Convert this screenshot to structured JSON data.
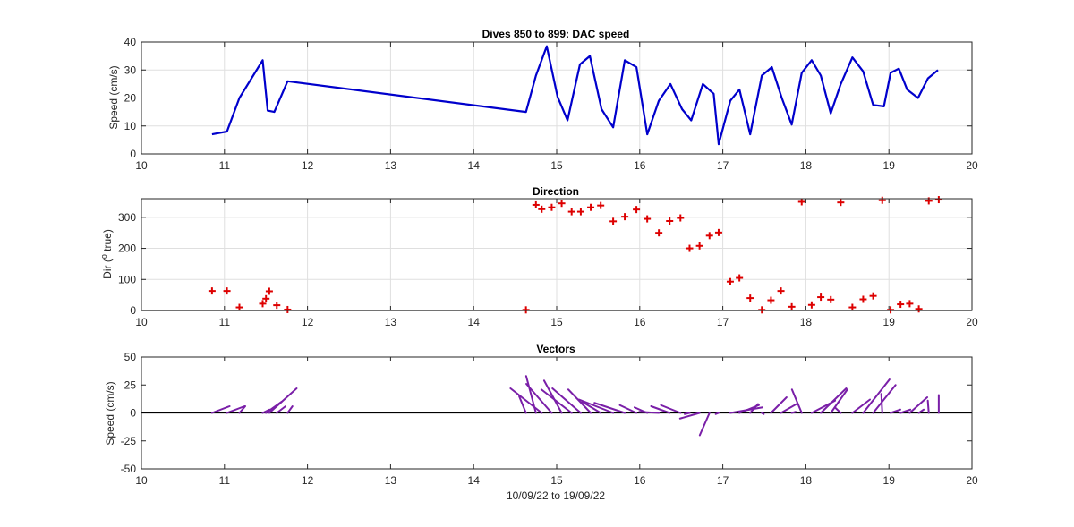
{
  "chart_data": [
    {
      "type": "line",
      "title": "Dives 850 to 899: DAC speed",
      "ylabel": "Speed (cm/s)",
      "xlabel": "",
      "xlim": [
        10,
        20
      ],
      "ylim": [
        0,
        40
      ],
      "xticks": [
        "10",
        "11",
        "12",
        "13",
        "14",
        "15",
        "16",
        "17",
        "18",
        "19",
        "20"
      ],
      "yticks": [
        "0",
        "10",
        "20",
        "30",
        "40"
      ],
      "grid": true,
      "color": "#0000cc",
      "x": [
        10.85,
        11.03,
        11.18,
        11.46,
        11.52,
        11.6,
        11.76,
        14.63,
        14.75,
        14.88,
        15.01,
        15.13,
        15.28,
        15.4,
        15.54,
        15.68,
        15.82,
        15.96,
        16.09,
        16.23,
        16.37,
        16.51,
        16.62,
        16.76,
        16.89,
        16.95,
        17.09,
        17.2,
        17.33,
        17.47,
        17.59,
        17.71,
        17.83,
        17.95,
        18.07,
        18.18,
        18.3,
        18.42,
        18.56,
        18.69,
        18.81,
        18.94,
        19.02,
        19.12,
        19.22,
        19.35,
        19.47,
        19.59
      ],
      "y": [
        7,
        8,
        20,
        33.5,
        15.5,
        15,
        26,
        15,
        28,
        38.5,
        20.5,
        12,
        32,
        35,
        16,
        9.5,
        33.5,
        31,
        7,
        19,
        25,
        16,
        12,
        25,
        21.5,
        3.5,
        19,
        23,
        7,
        28,
        31,
        20,
        10.5,
        29,
        33.5,
        28,
        14.5,
        25,
        34.5,
        29.5,
        17.5,
        17,
        29,
        30.5,
        23,
        20,
        27,
        30
      ]
    },
    {
      "type": "scatter",
      "title": "Direction",
      "ylabel": "Dir (° true)",
      "ylabel_base": "Dir (",
      "ylabel_sup": "o",
      "ylabel_tail": " true)",
      "xlabel": "",
      "xlim": [
        10,
        20
      ],
      "ylim": [
        0,
        360
      ],
      "xticks": [
        "10",
        "11",
        "12",
        "13",
        "14",
        "15",
        "16",
        "17",
        "18",
        "19",
        "20"
      ],
      "yticks": [
        "0",
        "100",
        "200",
        "300"
      ],
      "grid": true,
      "marker": "+",
      "color": "#dd0000",
      "x": [
        10.85,
        11.03,
        11.18,
        11.46,
        11.5,
        11.54,
        11.63,
        11.76,
        14.63,
        14.75,
        14.82,
        14.94,
        15.06,
        15.18,
        15.29,
        15.41,
        15.53,
        15.68,
        15.82,
        15.96,
        16.09,
        16.23,
        16.36,
        16.49,
        16.6,
        16.72,
        16.84,
        16.95,
        17.09,
        17.2,
        17.33,
        17.47,
        17.58,
        17.7,
        17.83,
        17.95,
        18.07,
        18.18,
        18.3,
        18.42,
        18.56,
        18.69,
        18.81,
        18.92,
        19.02,
        19.14,
        19.25,
        19.36,
        19.48,
        19.6
      ],
      "y": [
        63,
        63,
        10,
        22,
        38,
        62,
        17,
        3,
        2,
        340,
        326,
        332,
        345,
        318,
        318,
        332,
        338,
        287,
        302,
        325,
        295,
        250,
        288,
        298,
        200,
        208,
        241,
        251,
        93,
        105,
        40,
        2,
        33,
        63,
        12,
        350,
        18,
        43,
        35,
        348,
        10,
        36,
        47,
        355,
        2,
        20,
        22,
        5,
        353,
        357
      ]
    },
    {
      "type": "vector",
      "title": "Vectors",
      "ylabel": "Speed (cm/s)",
      "xlabel": "10/09/22 to 19/09/22",
      "xlim": [
        10,
        20
      ],
      "ylim": [
        -50,
        50
      ],
      "xticks": [
        "10",
        "11",
        "12",
        "13",
        "14",
        "15",
        "16",
        "17",
        "18",
        "19",
        "20"
      ],
      "yticks": [
        "-50",
        "-25",
        "0",
        "25",
        "50"
      ],
      "grid": false,
      "color": "#7a1fa8",
      "x": [
        10.85,
        11.03,
        11.18,
        11.46,
        11.5,
        11.54,
        11.63,
        11.76,
        14.63,
        14.75,
        14.82,
        14.94,
        15.06,
        15.18,
        15.29,
        15.41,
        15.53,
        15.68,
        15.82,
        15.96,
        16.09,
        16.23,
        16.36,
        16.49,
        16.6,
        16.72,
        16.84,
        16.95,
        17.09,
        17.2,
        17.33,
        17.47,
        17.58,
        17.7,
        17.83,
        17.95,
        18.07,
        18.18,
        18.3,
        18.42,
        18.56,
        18.69,
        18.81,
        18.92,
        19.02,
        19.14,
        19.25,
        19.36,
        19.48,
        19.6
      ],
      "u": [
        1.8,
        1.8,
        0.6,
        0.7,
        1.6,
        2.8,
        0.9,
        0.5,
        -0.7,
        -1.0,
        -3.2,
        -2.6,
        -1.8,
        -3.1,
        -2.9,
        -2.3,
        -1.9,
        -3.5,
        -3.1,
        -1.7,
        -1.3,
        -2.0,
        -1.9,
        -2.0,
        -0.5,
        -2.0,
        -1.0,
        -0.3,
        3.3,
        2.0,
        0.8,
        0.2,
        1.6,
        1.6,
        0.4,
        -1.0,
        2.4,
        2.6,
        1.7,
        -0.6,
        1.8,
        2.7,
        2.3,
        -0.1,
        1.0,
        1.0,
        1.8,
        0.5,
        -0.1,
        0.0
      ],
      "v": [
        0.6,
        0.6,
        0.6,
        0.3,
        1.0,
        2.2,
        0.6,
        0.6,
        1.5,
        3.3,
        2.2,
        2.6,
        2.9,
        2.1,
        2.2,
        2.1,
        1.0,
        1.2,
        0.9,
        0.7,
        0.5,
        0.1,
        0.6,
        0.7,
        -0.1,
        -0.5,
        -2.0,
        -0.1,
        0.5,
        0.7,
        0.8,
        -0.1,
        1.4,
        0.8,
        0.1,
        2.1,
        1.1,
        2.2,
        2.1,
        0.5,
        1.2,
        3.0,
        2.5,
        1.7,
        0.3,
        0.3,
        1.4,
        0.3,
        1.1,
        1.6
      ],
      "units_per_data": 8.5
    }
  ]
}
